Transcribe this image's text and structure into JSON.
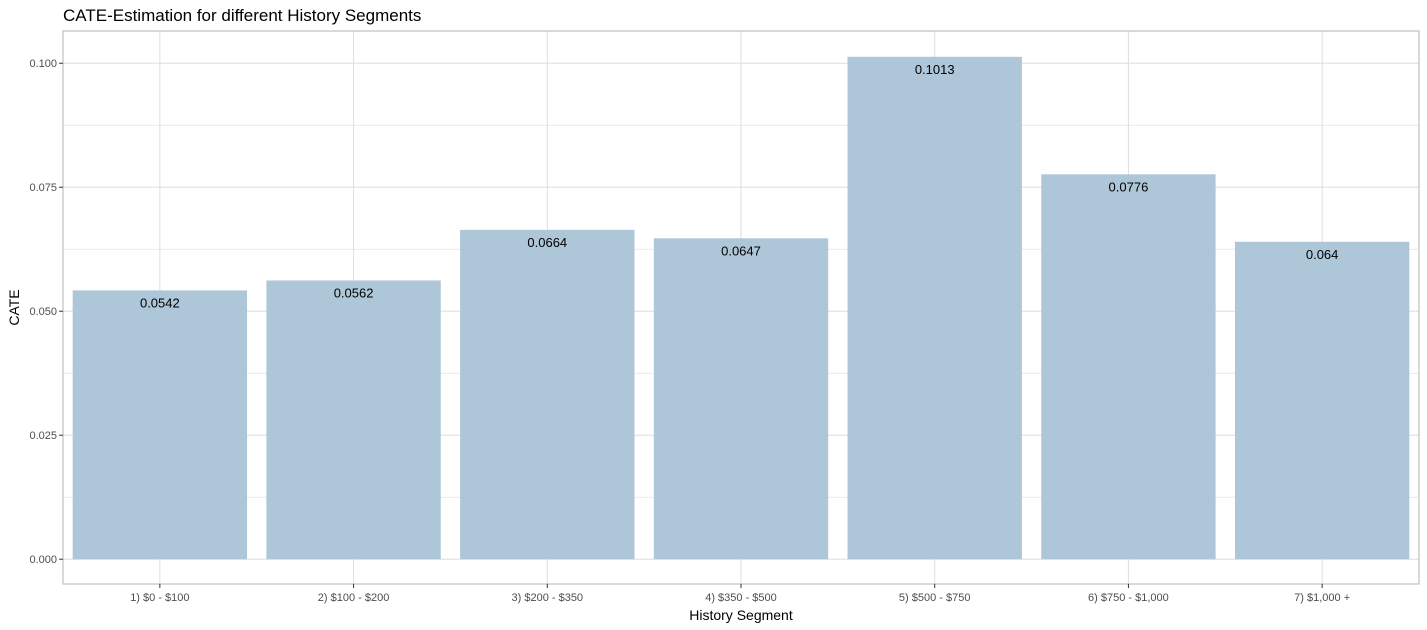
{
  "chart_data": {
    "type": "bar",
    "title": "CATE-Estimation for different History Segments",
    "xlabel": "History Segment",
    "ylabel": "CATE",
    "categories": [
      "1) $0 - $100",
      "2) $100 - $200",
      "3) $200 - $350",
      "4) $350 - $500",
      "5) $500 - $750",
      "6) $750 - $1,000",
      "7) $1,000 +"
    ],
    "values": [
      0.0542,
      0.0562,
      0.0664,
      0.0647,
      0.1013,
      0.0776,
      0.064
    ],
    "data_labels": [
      "0.0542",
      "0.0562",
      "0.0664",
      "0.0647",
      "0.1013",
      "0.0776",
      "0.064"
    ],
    "yticks": [
      0.0,
      0.025,
      0.05,
      0.075,
      0.1
    ],
    "ytick_labels": [
      "0.000",
      "0.025",
      "0.050",
      "0.075",
      "0.100"
    ],
    "ylim": [
      -0.005,
      0.1065
    ],
    "grid": true,
    "legend": "none",
    "colors": {
      "bar": "#adc6d8",
      "grid": "#dedede",
      "panel_border": "#b3b3b3",
      "tick_text": "#4d4d4d",
      "label_text": "#000000"
    }
  }
}
